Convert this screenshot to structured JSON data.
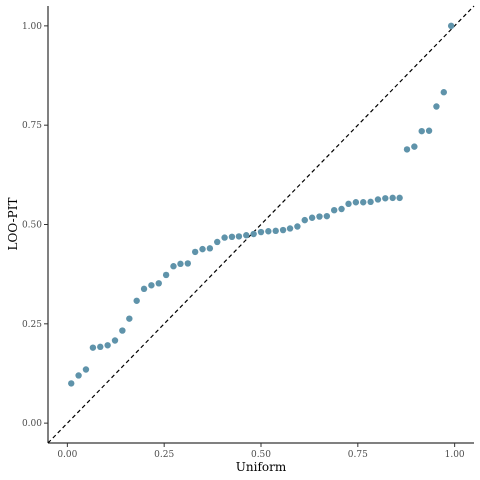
{
  "chart_data": {
    "type": "scatter",
    "xlabel": "Uniform",
    "ylabel": "LOO-PIT",
    "xlim": [
      -0.05,
      1.05
    ],
    "ylim": [
      -0.05,
      1.05
    ],
    "xticks": [
      0.0,
      0.25,
      0.5,
      0.75,
      1.0
    ],
    "xtick_labels": [
      "0.00",
      "0.25",
      "0.50",
      "0.75",
      "1.00"
    ],
    "yticks": [
      0.0,
      0.25,
      0.5,
      0.75,
      1.0
    ],
    "ytick_labels": [
      "0.00",
      "0.25",
      "0.50",
      "0.75",
      "1.00"
    ],
    "grid": false,
    "reference_line": {
      "style": "dashed",
      "slope": 1,
      "intercept": 0
    },
    "point_color": "#5f93aa",
    "series": [
      {
        "x": [
          0.01,
          0.029,
          0.048,
          0.066,
          0.085,
          0.104,
          0.123,
          0.142,
          0.16,
          0.179,
          0.198,
          0.217,
          0.236,
          0.255,
          0.274,
          0.292,
          0.311,
          0.33,
          0.349,
          0.368,
          0.387,
          0.406,
          0.425,
          0.443,
          0.462,
          0.481,
          0.5,
          0.519,
          0.538,
          0.557,
          0.575,
          0.594,
          0.613,
          0.632,
          0.651,
          0.67,
          0.689,
          0.708,
          0.726,
          0.745,
          0.764,
          0.783,
          0.802,
          0.821,
          0.84,
          0.858,
          0.877,
          0.896,
          0.915,
          0.934,
          0.953,
          0.972,
          0.991
        ],
        "y": [
          0.1,
          0.12,
          0.135,
          0.19,
          0.192,
          0.196,
          0.208,
          0.233,
          0.263,
          0.308,
          0.338,
          0.347,
          0.352,
          0.373,
          0.395,
          0.401,
          0.402,
          0.431,
          0.438,
          0.44,
          0.456,
          0.467,
          0.469,
          0.47,
          0.473,
          0.476,
          0.481,
          0.483,
          0.484,
          0.486,
          0.49,
          0.495,
          0.511,
          0.517,
          0.52,
          0.521,
          0.536,
          0.539,
          0.552,
          0.556,
          0.556,
          0.557,
          0.563,
          0.566,
          0.567,
          0.567,
          0.689,
          0.696,
          0.735,
          0.736,
          0.797,
          0.833,
          1.0
        ]
      }
    ]
  }
}
